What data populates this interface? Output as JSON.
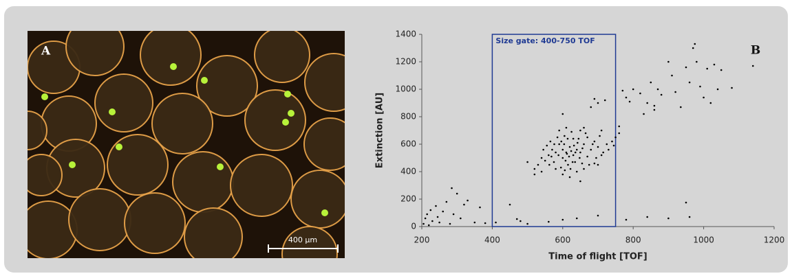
{
  "image": {
    "label": "A",
    "scale_bar": "400 µm"
  },
  "chart_data": {
    "type": "scatter",
    "panel_label": "B",
    "xlabel": "Time of flight [TOF]",
    "ylabel": "Extinction [AU]",
    "xlim": [
      200,
      1200
    ],
    "xticks": [
      200,
      400,
      600,
      800,
      1000,
      1200
    ],
    "ylim": [
      0,
      1400
    ],
    "yticks": [
      0,
      200,
      400,
      600,
      800,
      1000,
      1200,
      1400
    ],
    "color": "#000000",
    "gate": {
      "label": "Size gate: 400-750 TOF",
      "xlim": [
        400,
        750
      ],
      "color": "#1f3a93"
    },
    "x": [
      205,
      210,
      215,
      220,
      225,
      230,
      240,
      245,
      250,
      260,
      270,
      280,
      285,
      290,
      300,
      310,
      320,
      330,
      350,
      365,
      380,
      410,
      450,
      470,
      480,
      500,
      560,
      600,
      640,
      700,
      780,
      840,
      900,
      950,
      960,
      800,
      820,
      840,
      850,
      860,
      870,
      880,
      900,
      910,
      920,
      935,
      950,
      960,
      970,
      975,
      980,
      990,
      1000,
      1010,
      1020,
      1030,
      1040,
      1050,
      1080,
      1140,
      830,
      860,
      790,
      780,
      770,
      700,
      720,
      760,
      760,
      750,
      740,
      690,
      680,
      600,
      660,
      540,
      520,
      500,
      560,
      570,
      580,
      590,
      600,
      610,
      620,
      630,
      640,
      650,
      660,
      670,
      680,
      690,
      700,
      550,
      565,
      575,
      585,
      595,
      605,
      615,
      625,
      635,
      645,
      655,
      665,
      675,
      685,
      695,
      705,
      715,
      725,
      545,
      555,
      580,
      600,
      620,
      640,
      660,
      590,
      610,
      630,
      650,
      670,
      600,
      612,
      618,
      624,
      632,
      608,
      596,
      588,
      604,
      636,
      648,
      656,
      568,
      576,
      628,
      642,
      614,
      622,
      606,
      562,
      690,
      710,
      730,
      745,
      520,
      530,
      540,
      650,
      700,
      710
    ],
    "values": [
      20,
      60,
      90,
      10,
      120,
      40,
      150,
      70,
      30,
      110,
      180,
      20,
      280,
      90,
      240,
      60,
      160,
      190,
      30,
      140,
      25,
      30,
      160,
      55,
      40,
      20,
      35,
      50,
      60,
      80,
      50,
      70,
      60,
      175,
      70,
      1000,
      970,
      900,
      1050,
      850,
      1000,
      960,
      1200,
      1100,
      980,
      870,
      1160,
      1050,
      1300,
      1330,
      1200,
      1020,
      940,
      1150,
      900,
      1180,
      1000,
      1140,
      1010,
      1170,
      820,
      880,
      910,
      940,
      990,
      900,
      920,
      730,
      680,
      650,
      620,
      930,
      870,
      820,
      720,
      500,
      420,
      470,
      520,
      560,
      540,
      600,
      500,
      540,
      580,
      520,
      560,
      540,
      600,
      510,
      560,
      620,
      580,
      480,
      620,
      470,
      650,
      430,
      660,
      450,
      690,
      470,
      640,
      460,
      680,
      450,
      600,
      500,
      660,
      540,
      600,
      560,
      590,
      420,
      380,
      360,
      400,
      420,
      700,
      720,
      640,
      700,
      650,
      560,
      530,
      510,
      550,
      590,
      480,
      620,
      520,
      600,
      540,
      500,
      570,
      510,
      600,
      470,
      610,
      640,
      420,
      410,
      450,
      460,
      520,
      560,
      590,
      380,
      450,
      400,
      330,
      450,
      700
    ]
  }
}
